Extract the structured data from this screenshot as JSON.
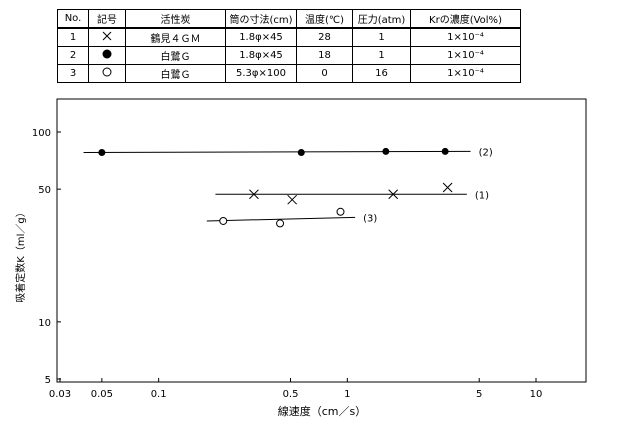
{
  "table": {
    "headers": [
      "No.",
      "記号",
      "活性炭",
      "筒の寸法(cm)",
      "温度(℃)",
      "圧力(atm)",
      "Krの濃度(Vol%)"
    ],
    "rows": [
      {
        "no": "1",
        "marker": "x",
        "carbon": "鶴見４ＧＭ",
        "size": "1.8φ×45",
        "temp": "28",
        "pressure": "1",
        "conc": "1×10⁻⁴"
      },
      {
        "no": "2",
        "marker": "filled-circle",
        "carbon": "白鷺Ｇ",
        "size": "1.8φ×45",
        "temp": "18",
        "pressure": "1",
        "conc": "1×10⁻⁴"
      },
      {
        "no": "3",
        "marker": "open-circle",
        "carbon": "白鷺Ｇ",
        "size": "5.3φ×100",
        "temp": "0",
        "pressure": "16",
        "conc": "1×10⁻⁴"
      }
    ]
  },
  "chart_data": {
    "type": "scatter",
    "xscale": "log",
    "yscale": "log",
    "xlabel": "線速度（cm／s）",
    "ylabel": "吸着定数K（ml／g）",
    "xlim": [
      0.03,
      10
    ],
    "ylim": [
      5,
      150
    ],
    "xticks": [
      0.03,
      0.05,
      0.1,
      0.5,
      1,
      5,
      10
    ],
    "xtick_labels": [
      "0.03",
      "0.05",
      "0.1",
      "0.5",
      "1",
      "5",
      "10"
    ],
    "yticks": [
      5,
      10,
      50,
      100
    ],
    "ytick_labels": [
      "5",
      "10",
      "50",
      "100"
    ],
    "series": [
      {
        "name": "(2)",
        "marker": "filled-circle",
        "points": [
          [
            0.05,
            78
          ],
          [
            0.57,
            78
          ],
          [
            1.6,
            79
          ],
          [
            3.3,
            79
          ]
        ],
        "fit": {
          "x": [
            0.04,
            4.5
          ],
          "y": [
            78,
            79
          ]
        }
      },
      {
        "name": "(1)",
        "marker": "x",
        "points": [
          [
            0.32,
            47
          ],
          [
            0.51,
            44
          ],
          [
            1.75,
            47
          ],
          [
            3.4,
            51
          ]
        ],
        "fit": {
          "x": [
            0.2,
            4.3
          ],
          "y": [
            47,
            47
          ]
        }
      },
      {
        "name": "(3)",
        "marker": "open-circle",
        "points": [
          [
            0.22,
            34
          ],
          [
            0.44,
            33
          ],
          [
            0.92,
            38
          ]
        ],
        "fit": {
          "x": [
            0.18,
            1.1
          ],
          "y": [
            34,
            35.5
          ]
        }
      }
    ]
  }
}
